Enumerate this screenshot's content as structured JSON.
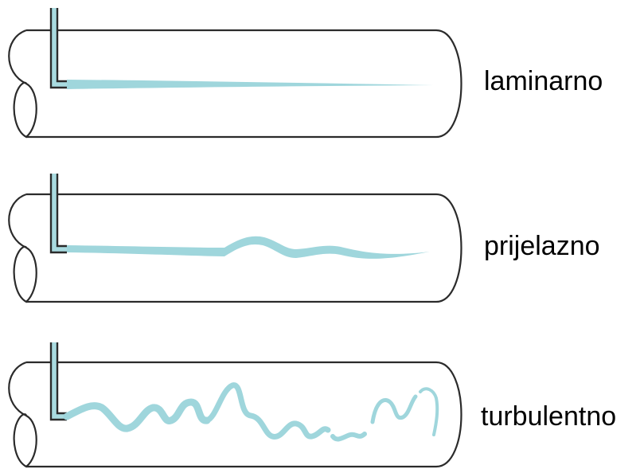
{
  "flow_regimes": [
    {
      "id": "laminar",
      "label": "laminarno"
    },
    {
      "id": "transitional",
      "label": "prijelazno"
    },
    {
      "id": "turbulent",
      "label": "turbulentno"
    }
  ],
  "colors": {
    "dye": "#9fd6dc",
    "outline": "#2b2b2b",
    "background": "#ffffff"
  }
}
